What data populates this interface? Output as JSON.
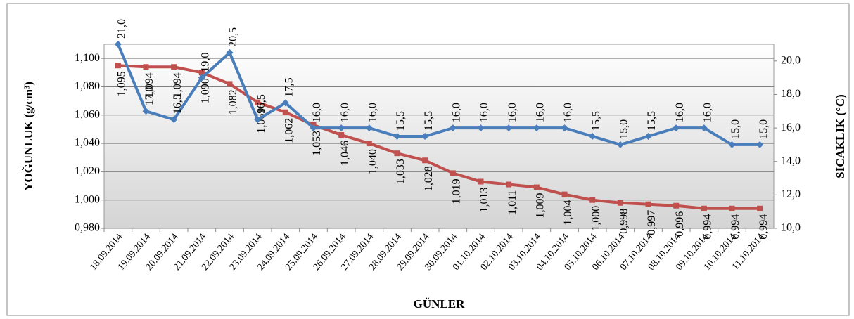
{
  "chart_data": {
    "type": "line",
    "x_label": "GÜNLER",
    "y_label": "YOĞUNLUK (g/cm³)",
    "y2_label": "SICAKLIK (°C)",
    "categories": [
      "18.09.2014",
      "19.09.2014",
      "20.09.2014",
      "21.09.2014",
      "22.09.2014",
      "23.09.2014",
      "24.09.2014",
      "25.09.2014",
      "26.09.2014",
      "27.09.2014",
      "28.09.2014",
      "29.09.2014",
      "30.09.2014",
      "01.10.2014",
      "02.10.2014",
      "03.10.2014",
      "04.10.2014",
      "05.10.2014",
      "06.10.2014",
      "07.10.2014",
      "08.10.2014",
      "09.10.2014",
      "10.10.2014",
      "11.10.2014"
    ],
    "series": [
      {
        "color": "#c0504d",
        "marker": "square",
        "axis": "y",
        "values": [
          1.095,
          1.094,
          1.094,
          1.09,
          1.082,
          1.069,
          1.062,
          1.053,
          1.046,
          1.04,
          1.033,
          1.028,
          1.019,
          1.013,
          1.011,
          1.009,
          1.004,
          1.0,
          0.998,
          0.997,
          0.996,
          0.994,
          0.994,
          0.994
        ],
        "value_labels": [
          "1,095",
          "1,094",
          "1,094",
          "1,090",
          "1,082",
          "1,069",
          "1,062",
          "1,053",
          "1,046",
          "1,040",
          "1,033",
          "1,028",
          "1,019",
          "1,013",
          "1,011",
          "1,009",
          "1,004",
          "1,000",
          "0,998",
          "0,997",
          "0,996",
          "0,994",
          "0,994",
          "0,994"
        ]
      },
      {
        "color": "#4a7ebb",
        "marker": "diamond",
        "axis": "y2",
        "values": [
          21.0,
          17.0,
          16.5,
          19.0,
          20.5,
          16.5,
          17.5,
          16.0,
          16.0,
          16.0,
          15.5,
          15.5,
          16.0,
          16.0,
          16.0,
          16.0,
          16.0,
          15.5,
          15.0,
          15.5,
          16.0,
          16.0,
          15.0,
          15.0
        ],
        "value_labels": [
          "21,0",
          "17,0",
          "16,5",
          "19,0",
          "20,5",
          "16,5",
          "17,5",
          "16,0",
          "16,0",
          "16,0",
          "15,5",
          "15,5",
          "16,0",
          "16,0",
          "16,0",
          "16,0",
          "16,0",
          "15,5",
          "15,0",
          "15,5",
          "16,0",
          "16,0",
          "15,0",
          "15,0"
        ]
      }
    ],
    "ylim": [
      0.98,
      1.11
    ],
    "yticks": [
      {
        "value": 0.98,
        "label": "0,980"
      },
      {
        "value": 1.0,
        "label": "1,000"
      },
      {
        "value": 1.02,
        "label": "1,020"
      },
      {
        "value": 1.04,
        "label": "1,040"
      },
      {
        "value": 1.06,
        "label": "1,060"
      },
      {
        "value": 1.08,
        "label": "1,080"
      },
      {
        "value": 1.1,
        "label": "1,100"
      }
    ],
    "y2lim": [
      10,
      21
    ],
    "y2ticks": [
      {
        "value": 10,
        "label": "10,0"
      },
      {
        "value": 12,
        "label": "12,0"
      },
      {
        "value": 14,
        "label": "14,0"
      },
      {
        "value": 16,
        "label": "16,0"
      },
      {
        "value": 18,
        "label": "18,0"
      },
      {
        "value": 20,
        "label": "20,0"
      }
    ],
    "grid": true
  }
}
